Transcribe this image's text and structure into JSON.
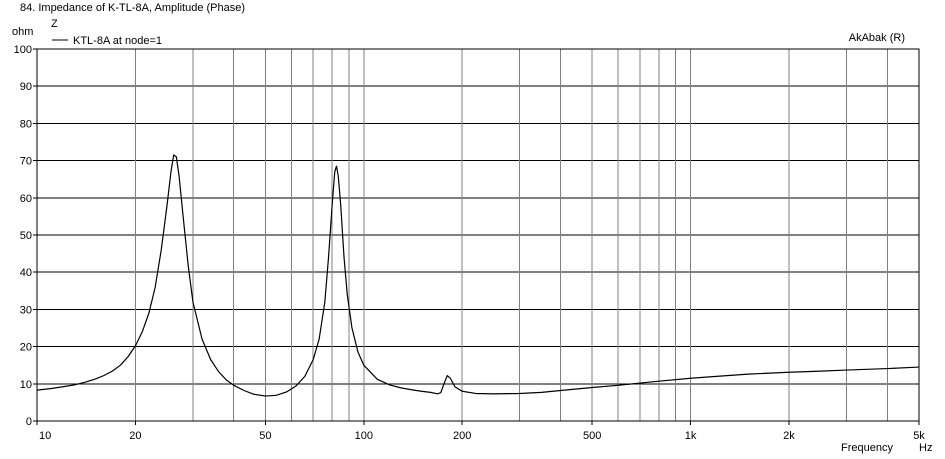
{
  "chart_data": {
    "type": "line",
    "title": "84. Impedance of K-TL-8A, Amplitude (Phase)",
    "legend_title": "Z",
    "ylabel": "ohm",
    "xlabel": "Frequency",
    "x_unit": "Hz",
    "watermark": "AkAbak (R)",
    "x_scale": "log",
    "xlim": [
      10,
      5000
    ],
    "ylim": [
      0,
      100
    ],
    "grid": true,
    "legend_position": "top-left",
    "y_ticks": [
      0,
      10,
      20,
      30,
      40,
      50,
      60,
      70,
      80,
      90,
      100
    ],
    "x_ticks": [
      {
        "value": 10,
        "label": "10"
      },
      {
        "value": 20,
        "label": "20"
      },
      {
        "value": 50,
        "label": "50"
      },
      {
        "value": 100,
        "label": "100"
      },
      {
        "value": 200,
        "label": "200"
      },
      {
        "value": 500,
        "label": "500"
      },
      {
        "value": 1000,
        "label": "1k"
      },
      {
        "value": 2000,
        "label": "2k"
      },
      {
        "value": 5000,
        "label": "5k"
      }
    ],
    "x_minor_grid": [
      30,
      40,
      60,
      70,
      80,
      90,
      300,
      400,
      600,
      700,
      800,
      900,
      3000,
      4000
    ],
    "series": [
      {
        "name": "KTL-8A at node=1",
        "color": "#000000",
        "points": [
          [
            10,
            8.3
          ],
          [
            11,
            8.7
          ],
          [
            12,
            9.2
          ],
          [
            13,
            9.7
          ],
          [
            14,
            10.4
          ],
          [
            15,
            11.2
          ],
          [
            16,
            12.2
          ],
          [
            17,
            13.4
          ],
          [
            18,
            15.0
          ],
          [
            19,
            17.3
          ],
          [
            20,
            20.2
          ],
          [
            21,
            24.0
          ],
          [
            22,
            29.0
          ],
          [
            23,
            36.0
          ],
          [
            24,
            46.0
          ],
          [
            25,
            58.0
          ],
          [
            25.7,
            67.0
          ],
          [
            26.2,
            71.5
          ],
          [
            26.7,
            71.0
          ],
          [
            27.2,
            66.0
          ],
          [
            28,
            55.0
          ],
          [
            29,
            42.0
          ],
          [
            30,
            32.0
          ],
          [
            32,
            22.0
          ],
          [
            34,
            16.5
          ],
          [
            36,
            13.2
          ],
          [
            38,
            11.0
          ],
          [
            40,
            9.6
          ],
          [
            43,
            8.2
          ],
          [
            46,
            7.2
          ],
          [
            50,
            6.7
          ],
          [
            54,
            6.9
          ],
          [
            58,
            7.8
          ],
          [
            62,
            9.4
          ],
          [
            66,
            12.0
          ],
          [
            70,
            16.5
          ],
          [
            73,
            22.0
          ],
          [
            76,
            32.0
          ],
          [
            78,
            44.0
          ],
          [
            80,
            58.0
          ],
          [
            81.5,
            67.0
          ],
          [
            82.5,
            68.5
          ],
          [
            83.5,
            66.0
          ],
          [
            85,
            58.0
          ],
          [
            87,
            44.0
          ],
          [
            89,
            34.0
          ],
          [
            92,
            25.0
          ],
          [
            96,
            18.5
          ],
          [
            100,
            15.0
          ],
          [
            110,
            11.2
          ],
          [
            120,
            9.7
          ],
          [
            130,
            8.9
          ],
          [
            140,
            8.4
          ],
          [
            150,
            8.0
          ],
          [
            160,
            7.7
          ],
          [
            168,
            7.3
          ],
          [
            172,
            7.6
          ],
          [
            176,
            10.0
          ],
          [
            180,
            12.2
          ],
          [
            184,
            11.5
          ],
          [
            190,
            9.2
          ],
          [
            200,
            8.0
          ],
          [
            220,
            7.4
          ],
          [
            250,
            7.3
          ],
          [
            300,
            7.4
          ],
          [
            350,
            7.7
          ],
          [
            400,
            8.2
          ],
          [
            500,
            9.0
          ],
          [
            600,
            9.6
          ],
          [
            700,
            10.2
          ],
          [
            800,
            10.7
          ],
          [
            1000,
            11.5
          ],
          [
            1200,
            12.0
          ],
          [
            1500,
            12.6
          ],
          [
            2000,
            13.1
          ],
          [
            2500,
            13.4
          ],
          [
            3000,
            13.7
          ],
          [
            4000,
            14.1
          ],
          [
            5000,
            14.5
          ]
        ]
      }
    ]
  }
}
